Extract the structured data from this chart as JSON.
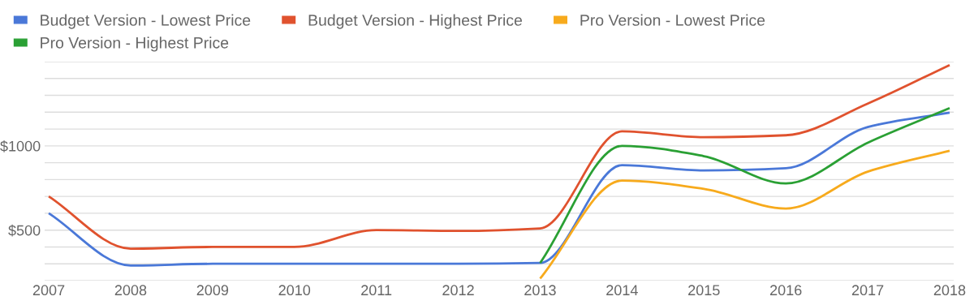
{
  "chart_data": {
    "type": "line",
    "categories": [
      "2007",
      "2008",
      "2009",
      "2010",
      "2011",
      "2012",
      "2013",
      "2014",
      "2015",
      "2016",
      "2017",
      "2018"
    ],
    "series": [
      {
        "name": "Budget Version - Lowest Price",
        "color": "#4a78d8",
        "values": [
          600,
          290,
          300,
          300,
          300,
          300,
          305,
          886,
          854,
          867,
          1112,
          1197
        ]
      },
      {
        "name": "Budget Version - Highest Price",
        "color": "#e0522e",
        "values": [
          700,
          390,
          400,
          400,
          500,
          495,
          510,
          1086,
          1052,
          1063,
          1251,
          1480
        ]
      },
      {
        "name": "Pro Version - Lowest Price",
        "color": "#f7aa1c",
        "values": [
          null,
          null,
          null,
          null,
          null,
          null,
          213,
          794,
          745,
          628,
          847,
          971
        ]
      },
      {
        "name": "Pro Version - Highest Price",
        "color": "#2aa034",
        "values": [
          null,
          null,
          null,
          null,
          null,
          null,
          305,
          1000,
          939,
          777,
          1019,
          1224
        ]
      }
    ],
    "ylim": [
      200,
      1500
    ],
    "yticks": [
      {
        "value": 200,
        "label": null
      },
      {
        "value": 300,
        "label": null
      },
      {
        "value": 400,
        "label": null
      },
      {
        "value": 500,
        "label": "$500"
      },
      {
        "value": 600,
        "label": null
      },
      {
        "value": 700,
        "label": null
      },
      {
        "value": 800,
        "label": null
      },
      {
        "value": 900,
        "label": null
      },
      {
        "value": 1000,
        "label": "$1000"
      },
      {
        "value": 1100,
        "label": null
      },
      {
        "value": 1200,
        "label": null
      },
      {
        "value": 1300,
        "label": null
      },
      {
        "value": 1400,
        "label": null
      },
      {
        "value": 1500,
        "label": null
      }
    ],
    "grid": "y",
    "legend": "top left",
    "marker": "none",
    "line_style": "solid"
  }
}
